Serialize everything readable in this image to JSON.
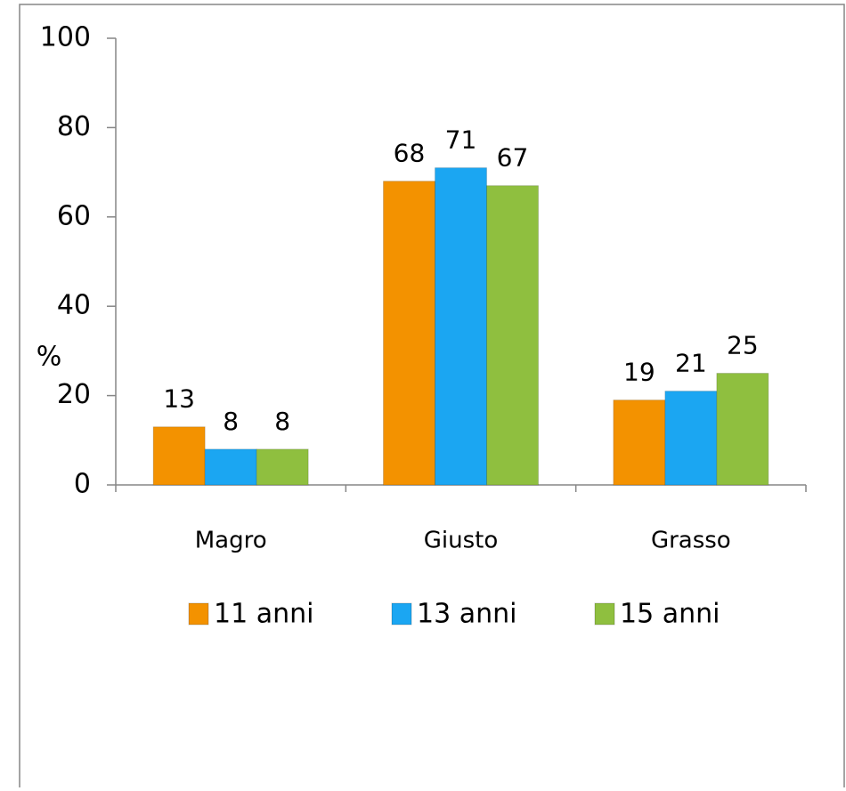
{
  "chart_data": {
    "type": "bar",
    "y_label": "%",
    "categories": [
      "Magro",
      "Giusto",
      "Grasso"
    ],
    "series": [
      {
        "name": "11 anni",
        "color": "#f39200",
        "values": [
          13,
          68,
          19
        ]
      },
      {
        "name": "13 anni",
        "color": "#1ba6f2",
        "values": [
          8,
          71,
          21
        ]
      },
      {
        "name": "15 anni",
        "color": "#8fbf3f",
        "values": [
          8,
          67,
          25
        ]
      }
    ],
    "ylim": [
      0,
      100
    ],
    "yticks": [
      0,
      20,
      40,
      60,
      80,
      100
    ],
    "legend": "bottom"
  }
}
